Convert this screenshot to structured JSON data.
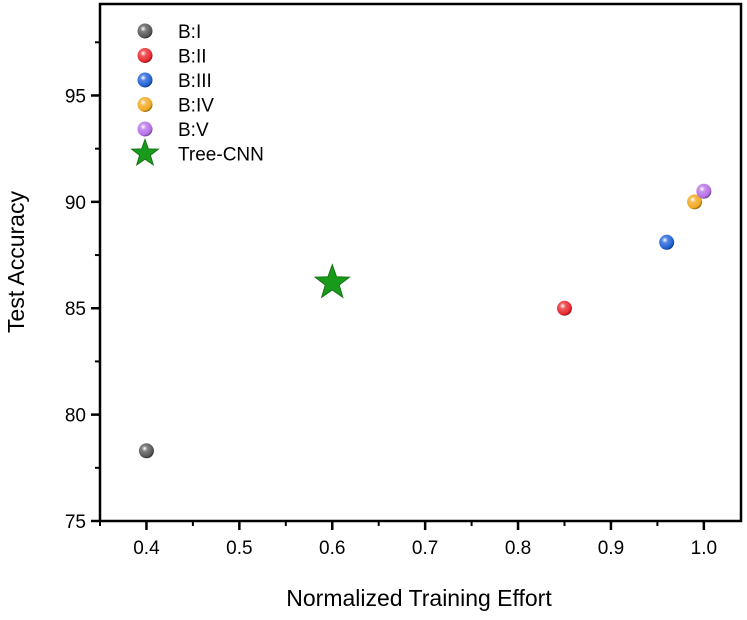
{
  "chart_data": {
    "type": "scatter",
    "title": "",
    "xlabel": "Normalized Training Effort",
    "ylabel": "Test Accuracy",
    "xlim": [
      0.35,
      1.04
    ],
    "ylim": [
      75,
      99.3
    ],
    "x_ticks": [
      "0.4",
      "0.5",
      "0.6",
      "0.7",
      "0.8",
      "0.9",
      "1.0"
    ],
    "y_ticks": [
      "75",
      "80",
      "85",
      "90",
      "95"
    ],
    "grid": false,
    "legend_position": "top-left",
    "series": [
      {
        "name": "B:I",
        "color": "#555555",
        "marker": "sphere",
        "points": [
          {
            "x": 0.4,
            "y": 78.3
          }
        ]
      },
      {
        "name": "B:II",
        "color": "#e8262b",
        "marker": "sphere",
        "points": [
          {
            "x": 0.85,
            "y": 85.0
          }
        ]
      },
      {
        "name": "B:III",
        "color": "#1f5fd6",
        "marker": "sphere",
        "points": [
          {
            "x": 0.96,
            "y": 88.1
          }
        ]
      },
      {
        "name": "B:IV",
        "color": "#f0a81c",
        "marker": "sphere",
        "points": [
          {
            "x": 0.99,
            "y": 90.0
          }
        ]
      },
      {
        "name": "B:V",
        "color": "#b46ee6",
        "marker": "sphere",
        "points": [
          {
            "x": 1.0,
            "y": 90.5
          }
        ]
      },
      {
        "name": "Tree-CNN",
        "color": "#1a9a1a",
        "marker": "star",
        "points": [
          {
            "x": 0.6,
            "y": 86.2
          }
        ]
      }
    ]
  }
}
